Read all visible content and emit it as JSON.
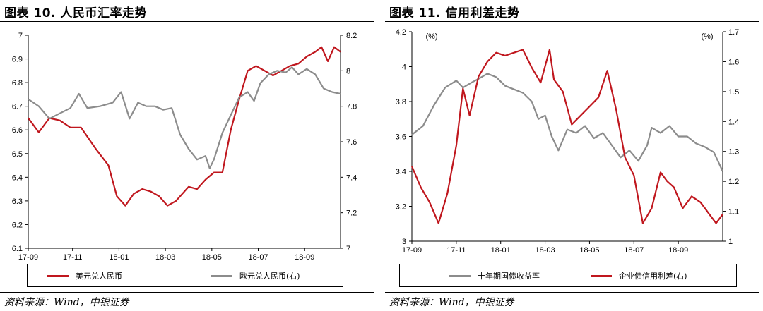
{
  "left": {
    "title": "图表 10. 人民币汇率走势",
    "source": "资料来源：Wind，中银证券",
    "chart_data": {
      "type": "line",
      "x_ticks": [
        "17-09",
        "17-11",
        "18-01",
        "18-03",
        "18-05",
        "18-07",
        "18-09"
      ],
      "y_left": {
        "min": 6.1,
        "max": 7.0,
        "ticks": [
          "6.1",
          "6.2",
          "6.3",
          "6.4",
          "6.5",
          "6.6",
          "6.7",
          "6.8",
          "6.9",
          "7"
        ]
      },
      "y_right": {
        "min": 7.0,
        "max": 8.2,
        "ticks": [
          "7",
          "7.2",
          "7.4",
          "7.6",
          "7.8",
          "8",
          "8.2"
        ]
      },
      "colors": {
        "series1": "#c0171e",
        "series2": "#8c8c8c"
      },
      "series": [
        {
          "name": "美元兑人民币",
          "axis": "left",
          "points": [
            [
              0,
              6.65
            ],
            [
              5,
              6.59
            ],
            [
              10,
              6.65
            ],
            [
              15,
              6.64
            ],
            [
              20,
              6.61
            ],
            [
              25,
              6.61
            ],
            [
              32,
              6.52
            ],
            [
              38,
              6.45
            ],
            [
              42,
              6.32
            ],
            [
              46,
              6.28
            ],
            [
              50,
              6.33
            ],
            [
              54,
              6.35
            ],
            [
              58,
              6.34
            ],
            [
              62,
              6.32
            ],
            [
              66,
              6.28
            ],
            [
              70,
              6.3
            ],
            [
              76,
              6.36
            ],
            [
              80,
              6.35
            ],
            [
              84,
              6.39
            ],
            [
              88,
              6.42
            ],
            [
              92,
              6.42
            ],
            [
              96,
              6.6
            ],
            [
              100,
              6.73
            ],
            [
              104,
              6.85
            ],
            [
              108,
              6.87
            ],
            [
              112,
              6.85
            ],
            [
              116,
              6.83
            ],
            [
              120,
              6.85
            ],
            [
              124,
              6.87
            ],
            [
              128,
              6.88
            ],
            [
              132,
              6.91
            ],
            [
              136,
              6.93
            ],
            [
              139,
              6.95
            ],
            [
              142,
              6.89
            ],
            [
              145,
              6.95
            ],
            [
              148,
              6.93
            ]
          ]
        },
        {
          "name": "欧元兑人民币(右)",
          "axis": "right",
          "points": [
            [
              0,
              7.84
            ],
            [
              5,
              7.8
            ],
            [
              10,
              7.73
            ],
            [
              15,
              7.76
            ],
            [
              20,
              7.79
            ],
            [
              24,
              7.87
            ],
            [
              28,
              7.79
            ],
            [
              34,
              7.8
            ],
            [
              40,
              7.82
            ],
            [
              44,
              7.88
            ],
            [
              48,
              7.73
            ],
            [
              52,
              7.82
            ],
            [
              56,
              7.8
            ],
            [
              60,
              7.8
            ],
            [
              64,
              7.78
            ],
            [
              68,
              7.79
            ],
            [
              72,
              7.64
            ],
            [
              76,
              7.56
            ],
            [
              80,
              7.5
            ],
            [
              84,
              7.52
            ],
            [
              86,
              7.45
            ],
            [
              88,
              7.5
            ],
            [
              92,
              7.65
            ],
            [
              96,
              7.75
            ],
            [
              100,
              7.85
            ],
            [
              104,
              7.88
            ],
            [
              107,
              7.83
            ],
            [
              110,
              7.93
            ],
            [
              114,
              7.98
            ],
            [
              118,
              8.0
            ],
            [
              122,
              7.99
            ],
            [
              125,
              8.02
            ],
            [
              128,
              7.98
            ],
            [
              132,
              8.01
            ],
            [
              136,
              7.98
            ],
            [
              140,
              7.9
            ],
            [
              144,
              7.88
            ],
            [
              148,
              7.87
            ]
          ]
        }
      ]
    }
  },
  "right": {
    "title": "图表 11. 信用利差走势",
    "source": "资料来源：Wind，中银证券",
    "chart_data": {
      "type": "line",
      "x_ticks": [
        "17-09",
        "17-11",
        "18-01",
        "18-03",
        "18-05",
        "18-07",
        "18-09"
      ],
      "y_left": {
        "min": 3.0,
        "max": 4.2,
        "unit": "(%)",
        "ticks": [
          "3",
          "3.2",
          "3.4",
          "3.6",
          "3.8",
          "4",
          "4.2"
        ]
      },
      "y_right": {
        "min": 1.0,
        "max": 1.7,
        "unit": "(%)",
        "ticks": [
          "1",
          "1.1",
          "1.2",
          "1.3",
          "1.4",
          "1.5",
          "1.6",
          "1.7"
        ]
      },
      "colors": {
        "series1": "#8c8c8c",
        "series2": "#c0171e"
      },
      "series": [
        {
          "name": "十年期国债收益率",
          "axis": "left",
          "points": [
            [
              0,
              3.61
            ],
            [
              5,
              3.66
            ],
            [
              10,
              3.78
            ],
            [
              15,
              3.88
            ],
            [
              20,
              3.92
            ],
            [
              23,
              3.88
            ],
            [
              27,
              3.91
            ],
            [
              30,
              3.93
            ],
            [
              34,
              3.96
            ],
            [
              38,
              3.94
            ],
            [
              42,
              3.89
            ],
            [
              46,
              3.87
            ],
            [
              50,
              3.85
            ],
            [
              54,
              3.8
            ],
            [
              57,
              3.7
            ],
            [
              60,
              3.72
            ],
            [
              63,
              3.6
            ],
            [
              66,
              3.52
            ],
            [
              70,
              3.64
            ],
            [
              74,
              3.62
            ],
            [
              78,
              3.66
            ],
            [
              82,
              3.59
            ],
            [
              86,
              3.62
            ],
            [
              90,
              3.55
            ],
            [
              94,
              3.48
            ],
            [
              98,
              3.52
            ],
            [
              102,
              3.46
            ],
            [
              106,
              3.55
            ],
            [
              108,
              3.65
            ],
            [
              112,
              3.62
            ],
            [
              116,
              3.66
            ],
            [
              120,
              3.6
            ],
            [
              124,
              3.6
            ],
            [
              128,
              3.56
            ],
            [
              132,
              3.54
            ],
            [
              136,
              3.51
            ],
            [
              140,
              3.4
            ]
          ]
        },
        {
          "name": "企业债信用利差(右)",
          "axis": "right",
          "points": [
            [
              0,
              1.25
            ],
            [
              4,
              1.18
            ],
            [
              8,
              1.13
            ],
            [
              12,
              1.06
            ],
            [
              16,
              1.16
            ],
            [
              20,
              1.32
            ],
            [
              23,
              1.51
            ],
            [
              26,
              1.42
            ],
            [
              30,
              1.55
            ],
            [
              34,
              1.6
            ],
            [
              38,
              1.63
            ],
            [
              42,
              1.62
            ],
            [
              46,
              1.63
            ],
            [
              50,
              1.64
            ],
            [
              54,
              1.58
            ],
            [
              58,
              1.53
            ],
            [
              62,
              1.64
            ],
            [
              64,
              1.54
            ],
            [
              68,
              1.5
            ],
            [
              72,
              1.39
            ],
            [
              76,
              1.42
            ],
            [
              80,
              1.45
            ],
            [
              84,
              1.48
            ],
            [
              88,
              1.57
            ],
            [
              92,
              1.44
            ],
            [
              96,
              1.28
            ],
            [
              100,
              1.22
            ],
            [
              104,
              1.06
            ],
            [
              108,
              1.11
            ],
            [
              112,
              1.23
            ],
            [
              115,
              1.2
            ],
            [
              118,
              1.18
            ],
            [
              122,
              1.11
            ],
            [
              126,
              1.15
            ],
            [
              130,
              1.13
            ],
            [
              134,
              1.09
            ],
            [
              137,
              1.06
            ],
            [
              140,
              1.09
            ]
          ]
        }
      ]
    }
  }
}
